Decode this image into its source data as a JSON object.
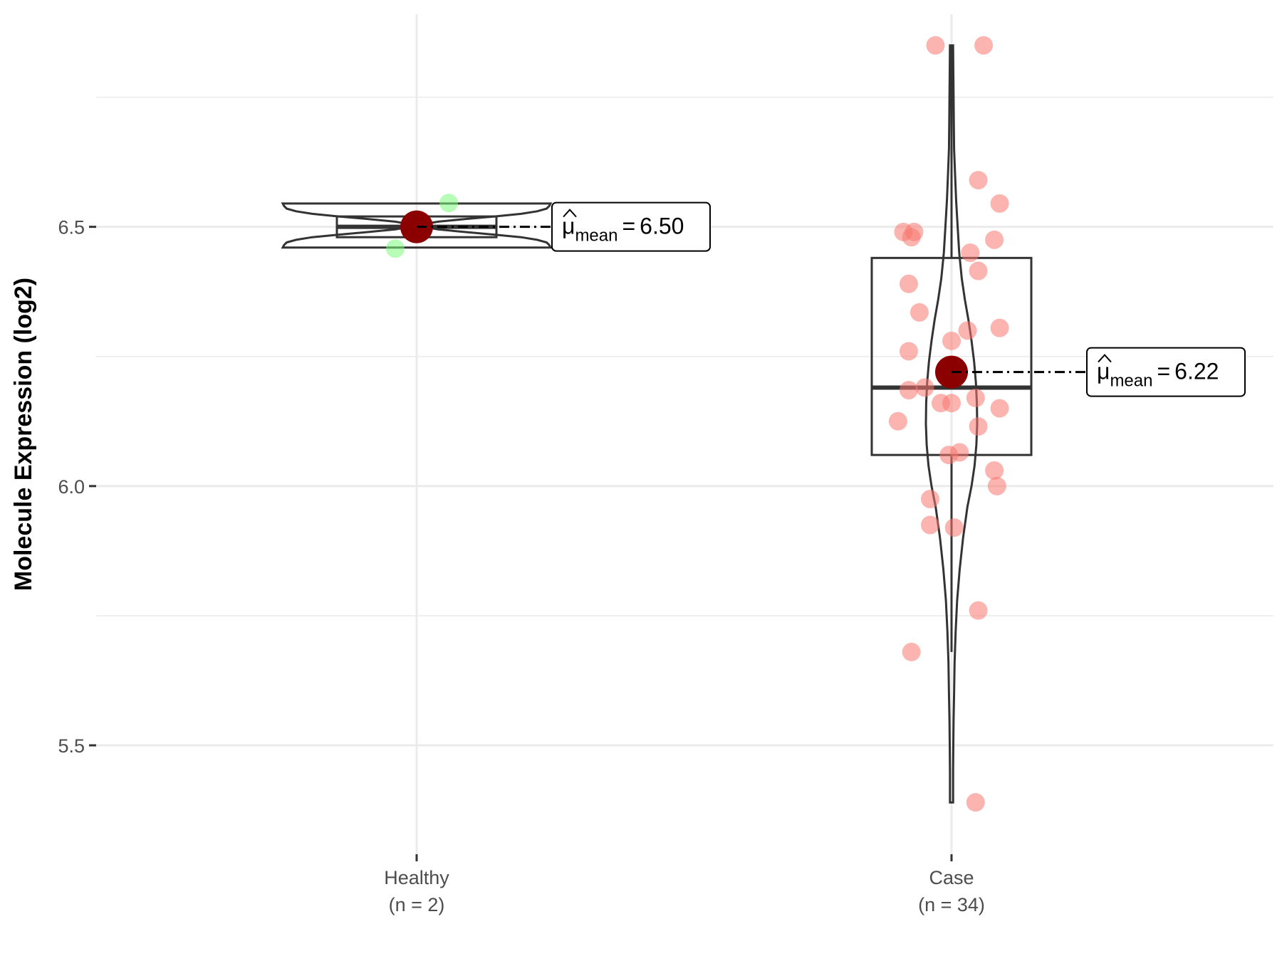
{
  "chart_data": {
    "type": "violin-box-jitter",
    "title": "",
    "xlabel": "",
    "ylabel": "Molecule Expression (log2)",
    "ylim": [
      5.29,
      6.91
    ],
    "yticks": [
      5.5,
      6.0,
      6.5
    ],
    "ytick_labels": [
      "5.5",
      "6.0",
      "6.5"
    ],
    "grid": true,
    "legend": "none",
    "categories": [
      "Healthy",
      "Case"
    ],
    "groups": [
      {
        "name": "Healthy",
        "n_label": "(n = 2)",
        "point_color": "#7CFC7C",
        "box": {
          "q1": 6.48,
          "median": 6.5,
          "q3": 6.52,
          "whisker_low": 6.48,
          "whisker_high": 6.52
        },
        "mean": 6.5,
        "mean_text": "6.50",
        "violin": {
          "y": [
            6.46,
            6.465,
            6.47,
            6.475,
            6.48,
            6.485,
            6.49,
            6.495,
            6.5,
            6.505,
            6.51,
            6.515,
            6.52,
            6.525,
            6.53,
            6.535,
            6.54,
            6.545
          ],
          "density": [
            1.0,
            0.99,
            0.97,
            0.9,
            0.78,
            0.58,
            0.36,
            0.16,
            0.05,
            0.05,
            0.16,
            0.36,
            0.58,
            0.78,
            0.9,
            0.97,
            0.99,
            1.0
          ]
        },
        "points": [
          {
            "x_jitter": 0.06,
            "y": 6.546
          },
          {
            "x_jitter": -0.04,
            "y": 6.458
          }
        ]
      },
      {
        "name": "Case",
        "n_label": "(n = 34)",
        "point_color": "#F8766D",
        "box": {
          "q1": 6.06,
          "median": 6.19,
          "q3": 6.44,
          "whisker_low": 5.68,
          "whisker_high": 6.85
        },
        "mean": 6.22,
        "mean_text": "6.22",
        "violin": {
          "y": [
            5.39,
            5.45,
            5.5,
            5.55,
            5.6,
            5.66,
            5.72,
            5.78,
            5.84,
            5.9,
            5.96,
            6.0,
            6.04,
            6.08,
            6.12,
            6.16,
            6.2,
            6.24,
            6.28,
            6.32,
            6.36,
            6.4,
            6.45,
            6.5,
            6.55,
            6.6,
            6.65,
            6.7,
            6.75,
            6.8,
            6.85
          ],
          "density": [
            0.06,
            0.06,
            0.07,
            0.08,
            0.1,
            0.12,
            0.16,
            0.22,
            0.32,
            0.45,
            0.62,
            0.78,
            0.9,
            0.97,
            1.0,
            0.99,
            0.95,
            0.88,
            0.78,
            0.66,
            0.52,
            0.4,
            0.3,
            0.24,
            0.18,
            0.14,
            0.1,
            0.09,
            0.08,
            0.07,
            0.06
          ]
        },
        "points": [
          {
            "x_jitter": -0.03,
            "y": 6.85
          },
          {
            "x_jitter": 0.06,
            "y": 6.85
          },
          {
            "x_jitter": 0.05,
            "y": 6.59
          },
          {
            "x_jitter": 0.09,
            "y": 6.545
          },
          {
            "x_jitter": -0.09,
            "y": 6.49
          },
          {
            "x_jitter": -0.07,
            "y": 6.49
          },
          {
            "x_jitter": -0.075,
            "y": 6.48
          },
          {
            "x_jitter": 0.08,
            "y": 6.475
          },
          {
            "x_jitter": 0.035,
            "y": 6.45
          },
          {
            "x_jitter": 0.05,
            "y": 6.415
          },
          {
            "x_jitter": -0.08,
            "y": 6.39
          },
          {
            "x_jitter": -0.06,
            "y": 6.335
          },
          {
            "x_jitter": 0.09,
            "y": 6.305
          },
          {
            "x_jitter": 0.03,
            "y": 6.3
          },
          {
            "x_jitter": 0.0,
            "y": 6.28
          },
          {
            "x_jitter": -0.08,
            "y": 6.26
          },
          {
            "x_jitter": -0.05,
            "y": 6.19
          },
          {
            "x_jitter": -0.08,
            "y": 6.185
          },
          {
            "x_jitter": 0.045,
            "y": 6.17
          },
          {
            "x_jitter": -0.02,
            "y": 6.16
          },
          {
            "x_jitter": 0.0,
            "y": 6.16
          },
          {
            "x_jitter": 0.09,
            "y": 6.15
          },
          {
            "x_jitter": -0.1,
            "y": 6.125
          },
          {
            "x_jitter": 0.05,
            "y": 6.115
          },
          {
            "x_jitter": 0.015,
            "y": 6.065
          },
          {
            "x_jitter": -0.005,
            "y": 6.06
          },
          {
            "x_jitter": 0.08,
            "y": 6.03
          },
          {
            "x_jitter": 0.085,
            "y": 6.0
          },
          {
            "x_jitter": -0.04,
            "y": 5.975
          },
          {
            "x_jitter": -0.04,
            "y": 5.925
          },
          {
            "x_jitter": 0.005,
            "y": 5.92
          },
          {
            "x_jitter": 0.05,
            "y": 5.76
          },
          {
            "x_jitter": -0.075,
            "y": 5.68
          },
          {
            "x_jitter": 0.045,
            "y": 5.39
          }
        ]
      }
    ],
    "mean_label_prefix": "μ",
    "mean_label_subscript": "mean",
    "mean_label_equals": "=",
    "colors": {
      "mean_point": "#8B0000",
      "outline": "#333333",
      "grid": "#ebebeb",
      "tick_text": "#4d4d4d"
    }
  }
}
